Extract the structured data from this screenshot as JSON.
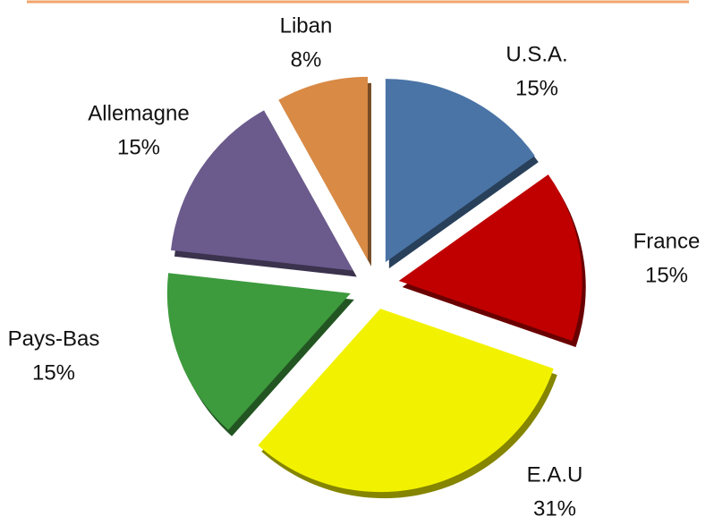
{
  "chart_data": {
    "type": "pie",
    "categories": [
      "U.S.A.",
      "France",
      "E.A.U",
      "Pays-Bas",
      "Allemagne",
      "Liban"
    ],
    "values": [
      15,
      15,
      31,
      15,
      15,
      8
    ],
    "value_labels": [
      "15%",
      "15%",
      "31%",
      "15%",
      "15%",
      "8%"
    ],
    "colors": [
      "#4a74a6",
      "#c00000",
      "#f2f200",
      "#3d9a3d",
      "#6b5a8c",
      "#d98a45"
    ]
  }
}
